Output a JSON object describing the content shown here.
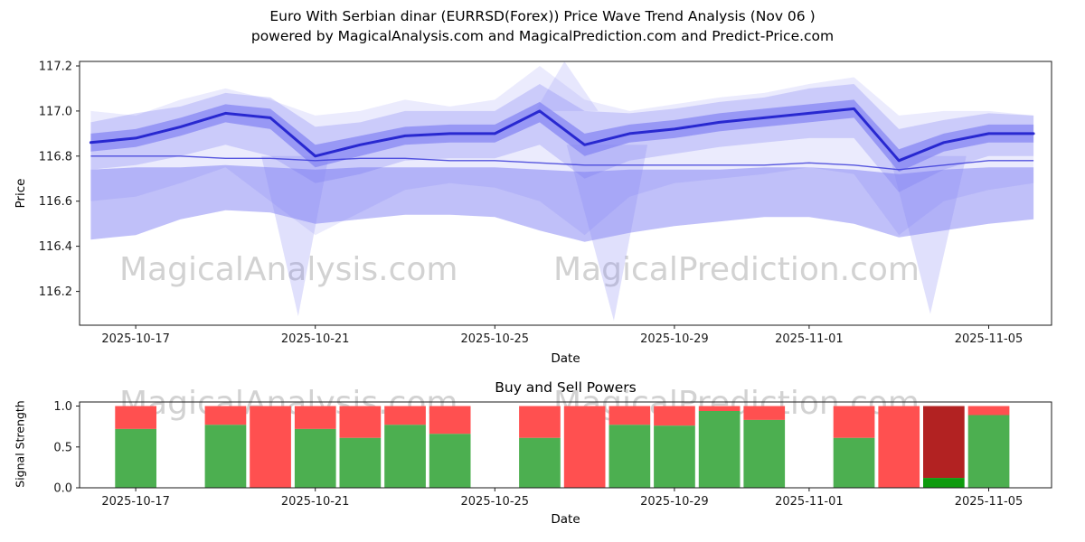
{
  "header": {
    "title_line1": "Euro With Serbian dinar (EURRSD(Forex)) Price Wave Trend Analysis (Nov 06 )",
    "title_line2": "powered by MagicalAnalysis.com and MagicalPrediction.com and Predict-Price.com"
  },
  "watermarks": {
    "left": "MagicalAnalysis.com",
    "right": "MagicalPrediction.com"
  },
  "colors": {
    "band_fill": "#5a5af0",
    "band_light": "#8585f5",
    "main_line": "#1c1ccc",
    "mid_line": "#3a3ad8",
    "buy_green": "#4CAF50",
    "sell_red": "#FF5050",
    "watermark": "#d2d2d2",
    "axis": "#1a1a1a"
  },
  "chart_data": [
    {
      "type": "area",
      "title": "Euro With Serbian dinar (EURRSD(Forex)) Price Wave Trend Analysis (Nov 06 )",
      "xlabel": "Date",
      "ylabel": "Price",
      "ylim": [
        116.05,
        117.22
      ],
      "yticks": [
        116.2,
        116.4,
        116.6,
        116.8,
        117.0,
        117.2
      ],
      "xticks": [
        "2025-10-17",
        "2025-10-21",
        "2025-10-25",
        "2025-10-29",
        "2025-11-01",
        "2025-11-05"
      ],
      "grid": false,
      "legend": "none",
      "dates": [
        "2025-10-16",
        "2025-10-17",
        "2025-10-18",
        "2025-10-19",
        "2025-10-20",
        "2025-10-21",
        "2025-10-22",
        "2025-10-23",
        "2025-10-24",
        "2025-10-25",
        "2025-10-26",
        "2025-10-27",
        "2025-10-28",
        "2025-10-29",
        "2025-10-30",
        "2025-10-31",
        "2025-11-01",
        "2025-11-02",
        "2025-11-03",
        "2025-11-04",
        "2025-11-05",
        "2025-11-06"
      ],
      "series": [
        {
          "name": "main_trend",
          "values": [
            116.86,
            116.88,
            116.93,
            116.99,
            116.97,
            116.8,
            116.85,
            116.89,
            116.9,
            116.9,
            117.0,
            116.85,
            116.9,
            116.92,
            116.95,
            116.97,
            116.99,
            117.01,
            116.78,
            116.86,
            116.9,
            116.9
          ]
        },
        {
          "name": "mid_trend",
          "values": [
            116.8,
            116.8,
            116.8,
            116.79,
            116.79,
            116.78,
            116.79,
            116.79,
            116.78,
            116.78,
            116.77,
            116.76,
            116.76,
            116.76,
            116.76,
            116.76,
            116.77,
            116.76,
            116.74,
            116.76,
            116.78,
            116.78
          ]
        }
      ],
      "bands": [
        {
          "name": "outer_fuzz",
          "opacity": 0.12,
          "upper": [
            117.0,
            116.98,
            117.05,
            117.1,
            117.05,
            116.98,
            117.0,
            117.05,
            117.02,
            117.05,
            117.2,
            117.05,
            117.0,
            117.03,
            117.06,
            117.08,
            117.12,
            117.15,
            116.98,
            117.0,
            117.0,
            116.98
          ],
          "lower": [
            116.6,
            116.62,
            116.68,
            116.75,
            116.6,
            116.45,
            116.55,
            116.65,
            116.68,
            116.66,
            116.6,
            116.45,
            116.62,
            116.68,
            116.7,
            116.72,
            116.75,
            116.72,
            116.45,
            116.6,
            116.65,
            116.68
          ]
        },
        {
          "name": "outer_band",
          "opacity": 0.22,
          "upper": [
            116.95,
            116.99,
            117.02,
            117.08,
            117.06,
            116.93,
            116.95,
            117.0,
            117.0,
            117.0,
            117.12,
            117.0,
            116.99,
            117.01,
            117.04,
            117.06,
            117.1,
            117.12,
            116.92,
            116.96,
            116.99,
            116.98
          ],
          "lower": [
            116.74,
            116.76,
            116.8,
            116.85,
            116.8,
            116.68,
            116.72,
            116.78,
            116.79,
            116.79,
            116.85,
            116.7,
            116.78,
            116.81,
            116.84,
            116.86,
            116.88,
            116.88,
            116.64,
            116.74,
            116.8,
            116.8
          ]
        },
        {
          "name": "low_band",
          "opacity": 0.38,
          "upper": [
            116.74,
            116.75,
            116.75,
            116.76,
            116.75,
            116.74,
            116.75,
            116.75,
            116.75,
            116.75,
            116.74,
            116.73,
            116.74,
            116.74,
            116.74,
            116.75,
            116.75,
            116.74,
            116.72,
            116.74,
            116.75,
            116.75
          ],
          "lower": [
            116.43,
            116.45,
            116.52,
            116.56,
            116.55,
            116.5,
            116.52,
            116.54,
            116.54,
            116.53,
            116.47,
            116.42,
            116.46,
            116.49,
            116.51,
            116.53,
            116.53,
            116.5,
            116.44,
            116.47,
            116.5,
            116.52
          ]
        },
        {
          "name": "inner_band",
          "opacity": 0.45,
          "upper": [
            116.9,
            116.92,
            116.97,
            117.03,
            117.01,
            116.85,
            116.89,
            116.93,
            116.94,
            116.94,
            117.04,
            116.9,
            116.94,
            116.96,
            116.99,
            117.01,
            117.03,
            117.05,
            116.83,
            116.9,
            116.94,
            116.94
          ],
          "lower": [
            116.82,
            116.84,
            116.89,
            116.95,
            116.92,
            116.75,
            116.8,
            116.85,
            116.86,
            116.86,
            116.95,
            116.8,
            116.86,
            116.88,
            116.91,
            116.93,
            116.95,
            116.97,
            116.73,
            116.82,
            116.86,
            116.86
          ]
        }
      ],
      "spikes": [
        {
          "name": "down-spike-1",
          "opacity": 0.25,
          "points": [
            [
              3.8,
              116.8
            ],
            [
              4.62,
              116.09
            ],
            [
              5.3,
              116.8
            ]
          ]
        },
        {
          "name": "down-spike-2",
          "opacity": 0.25,
          "points": [
            [
              10.6,
              116.85
            ],
            [
              11.65,
              116.07
            ],
            [
              12.4,
              116.85
            ]
          ]
        },
        {
          "name": "down-spike-3",
          "opacity": 0.25,
          "points": [
            [
              17.8,
              116.8
            ],
            [
              18.7,
              116.1
            ],
            [
              19.5,
              116.8
            ]
          ]
        },
        {
          "name": "up-spike-1",
          "opacity": 0.2,
          "points": [
            [
              9.9,
              117.0
            ],
            [
              10.55,
              117.22
            ],
            [
              11.3,
              117.0
            ]
          ]
        }
      ]
    },
    {
      "type": "bar",
      "title": "Buy and Sell Powers",
      "xlabel": "Date",
      "ylabel": "Signal Strength",
      "ylim": [
        0,
        1.05
      ],
      "yticks": [
        0.0,
        0.5,
        1.0
      ],
      "xticks": [
        "2025-10-17",
        "2025-10-21",
        "2025-10-25",
        "2025-10-29",
        "2025-11-01",
        "2025-11-05"
      ],
      "stacked": true,
      "bar_width_days": 0.92,
      "bars": [
        {
          "date": "2025-10-17",
          "buy": 0.72,
          "sell": 0.28
        },
        {
          "date": "2025-10-19",
          "buy": 0.77,
          "sell": 0.23
        },
        {
          "date": "2025-10-20",
          "buy": 0.0,
          "sell": 1.0
        },
        {
          "date": "2025-10-21",
          "buy": 0.72,
          "sell": 0.28
        },
        {
          "date": "2025-10-22",
          "buy": 0.61,
          "sell": 0.39
        },
        {
          "date": "2025-10-23",
          "buy": 0.77,
          "sell": 0.23
        },
        {
          "date": "2025-10-24",
          "buy": 0.66,
          "sell": 0.34
        },
        {
          "date": "2025-10-26",
          "buy": 0.61,
          "sell": 0.39
        },
        {
          "date": "2025-10-27",
          "buy": 0.0,
          "sell": 1.0
        },
        {
          "date": "2025-10-28",
          "buy": 0.77,
          "sell": 0.23
        },
        {
          "date": "2025-10-29",
          "buy": 0.76,
          "sell": 0.24
        },
        {
          "date": "2025-10-30",
          "buy": 0.94,
          "sell": 0.06
        },
        {
          "date": "2025-10-31",
          "buy": 0.83,
          "sell": 0.17
        },
        {
          "date": "2025-11-02",
          "buy": 0.61,
          "sell": 0.39
        },
        {
          "date": "2025-11-03",
          "buy": 0.0,
          "sell": 1.0
        },
        {
          "date": "2025-11-04",
          "buy": 0.12,
          "sell": 0.88,
          "colors": {
            "buy": "#0E9B0E",
            "sell": "#B22222"
          }
        },
        {
          "date": "2025-11-05",
          "buy": 0.89,
          "sell": 0.11
        }
      ]
    }
  ]
}
